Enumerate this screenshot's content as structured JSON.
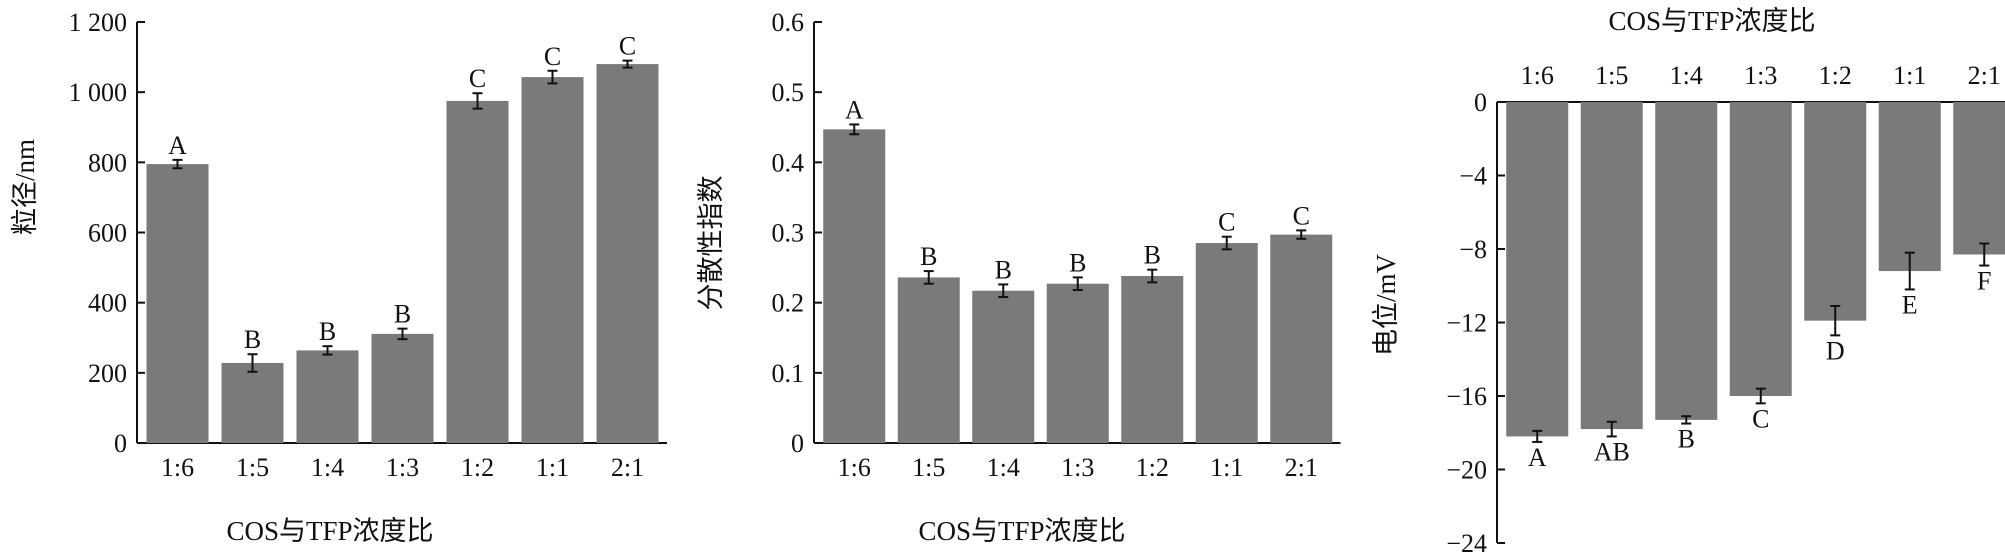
{
  "chart_data": [
    {
      "type": "bar",
      "xlabel": "COS与TFP浓度比",
      "ylabel": "粒径/nm",
      "categories": [
        "1:6",
        "1:5",
        "1:4",
        "1:3",
        "1:2",
        "1:1",
        "2:1"
      ],
      "values": [
        795,
        228,
        264,
        311,
        975,
        1043,
        1080
      ],
      "errors": [
        12,
        25,
        12,
        15,
        22,
        18,
        10
      ],
      "letters": [
        "A",
        "B",
        "B",
        "B",
        "C",
        "C",
        "C"
      ],
      "ylim": [
        0,
        1200
      ],
      "yticks": [
        0,
        200,
        400,
        600,
        800,
        1000,
        1200
      ],
      "ytick_labels": [
        "0",
        "200",
        "400",
        "600",
        "800",
        "1 000",
        "1 200"
      ],
      "grid": false
    },
    {
      "type": "bar",
      "xlabel": "COS与TFP浓度比",
      "ylabel": "分散性指数",
      "categories": [
        "1:6",
        "1:5",
        "1:4",
        "1:3",
        "1:2",
        "1:1",
        "2:1"
      ],
      "values": [
        0.447,
        0.236,
        0.217,
        0.227,
        0.238,
        0.285,
        0.297
      ],
      "errors": [
        0.007,
        0.009,
        0.009,
        0.009,
        0.009,
        0.009,
        0.006
      ],
      "letters": [
        "A",
        "B",
        "B",
        "B",
        "B",
        "C",
        "C"
      ],
      "ylim": [
        0,
        0.6
      ],
      "yticks": [
        0,
        0.1,
        0.2,
        0.3,
        0.4,
        0.5,
        0.6
      ],
      "ytick_labels": [
        "0",
        "0.1",
        "0.2",
        "0.3",
        "0.4",
        "0.5",
        "0.6"
      ],
      "grid": false
    },
    {
      "type": "bar",
      "xlabel": "COS与TFP浓度比",
      "xlabel_position": "top",
      "ylabel": "电位/mV",
      "categories": [
        "1:6",
        "1:5",
        "1:4",
        "1:3",
        "1:2",
        "1:1",
        "2:1"
      ],
      "values": [
        -18.2,
        -17.8,
        -17.3,
        -16.0,
        -11.9,
        -9.2,
        -8.3
      ],
      "errors": [
        0.3,
        0.4,
        0.2,
        0.4,
        0.8,
        1.0,
        0.6
      ],
      "letters": [
        "A",
        "AB",
        "B",
        "C",
        "D",
        "E",
        "F"
      ],
      "ylim": [
        -24,
        0
      ],
      "yticks": [
        0,
        -4,
        -8,
        -12,
        -16,
        -20,
        -24
      ],
      "ytick_labels": [
        "0",
        "−4",
        "−8",
        "−12",
        "−16",
        "−20",
        "−24"
      ],
      "grid": false
    }
  ]
}
